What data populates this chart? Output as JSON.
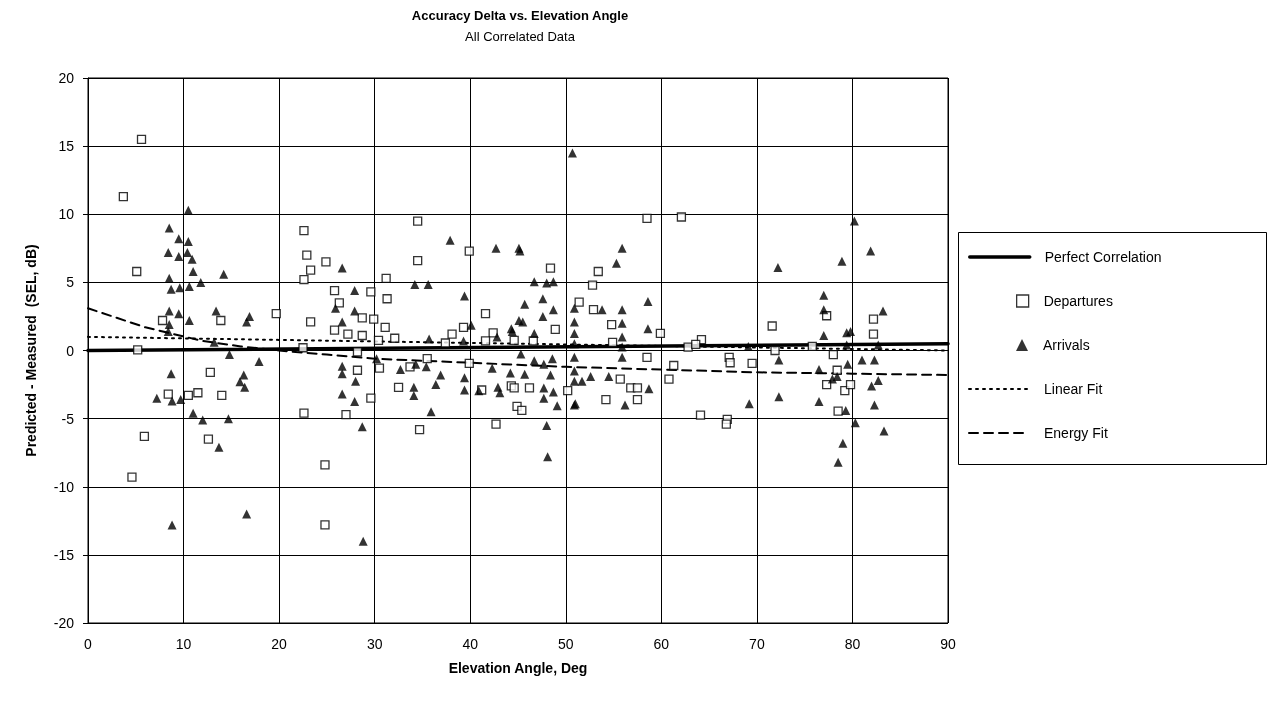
{
  "chart_data": {
    "type": "scatter",
    "title": "Accuracy Delta vs. Elevation Angle",
    "subtitle": "All Correlated Data",
    "xlabel": "Elevation Angle, Deg",
    "ylabel": "Predicted - Measured  (SEL, dB)",
    "xlim": [
      0,
      90
    ],
    "xticks": [
      0,
      10,
      20,
      30,
      40,
      50,
      60,
      70,
      80,
      90
    ],
    "ylim": [
      -20,
      20
    ],
    "yticks": [
      -20,
      -15,
      -10,
      -5,
      0,
      5,
      10,
      15,
      20
    ],
    "grid": true,
    "legend": "right",
    "series": [
      {
        "name": "Perfect Correlation",
        "type": "line",
        "color": "#000000",
        "line_style": "solid",
        "marker": "none",
        "x": [
          0,
          90
        ],
        "values": [
          0,
          0.5
        ]
      },
      {
        "name": "Departures",
        "color": "#000000",
        "marker": "square",
        "x": [
          5.6,
          3.7,
          5.1,
          7.8,
          13.9,
          19.7,
          5.2,
          12.8,
          8.4,
          10.5,
          11.5,
          14.0,
          5.9,
          12.6,
          4.6,
          34.5,
          39.9,
          34.5,
          22.6,
          22.9,
          24.9,
          23.3,
          22.6,
          31.2,
          25.8,
          29.6,
          31.3,
          26.3,
          23.3,
          28.7,
          29.9,
          31.1,
          41.6,
          25.8,
          27.2,
          28.7,
          30.4,
          32.1,
          38.1,
          39.3,
          37.4,
          42.4,
          41.6,
          44.6,
          22.5,
          28.2,
          28.2,
          30.5,
          35.5,
          33.7,
          39.9,
          32.5,
          41.2,
          44.3,
          29.6,
          44.9,
          22.6,
          27.0,
          34.7,
          42.7,
          24.8,
          24.8,
          58.5,
          62.1,
          48.4,
          53.4,
          52.8,
          51.4,
          52.9,
          48.9,
          54.8,
          54.9,
          59.9,
          46.6,
          64.2,
          62.8,
          63.6,
          67.1,
          61.3,
          60.8,
          55.7,
          56.8,
          57.5,
          54.2,
          57.5,
          44.6,
          46.2,
          50.2,
          45.4,
          64.1,
          66.9,
          58.5,
          71.6,
          82.2,
          82.2,
          71.9,
          75.8,
          78.0,
          67.2,
          69.5,
          77.3,
          77.3,
          78.4,
          79.2,
          79.8,
          78.5,
          66.8
        ],
        "values": [
          15.5,
          11.3,
          5.8,
          2.2,
          2.2,
          2.7,
          0.05,
          -1.6,
          -3.2,
          -3.3,
          -3.1,
          -3.3,
          -6.3,
          -6.5,
          -9.3,
          9.5,
          7.3,
          6.6,
          8.8,
          7.0,
          6.5,
          5.9,
          5.2,
          5.3,
          4.4,
          4.3,
          3.8,
          3.5,
          2.1,
          2.4,
          2.3,
          1.7,
          2.7,
          1.5,
          1.2,
          1.1,
          0.75,
          0.9,
          1.2,
          1.7,
          0.55,
          1.3,
          0.7,
          0.75,
          0.2,
          -0.1,
          -1.45,
          -1.3,
          -0.6,
          -1.2,
          -0.95,
          -2.7,
          -2.9,
          -2.6,
          -3.5,
          -4.1,
          -4.6,
          -4.7,
          -5.8,
          -5.4,
          -8.4,
          -12.8,
          9.7,
          9.8,
          6.05,
          5.8,
          4.8,
          3.55,
          3.0,
          1.55,
          1.9,
          0.6,
          1.25,
          0.7,
          0.8,
          0.25,
          0.45,
          -0.5,
          -1.1,
          -2.1,
          -2.1,
          -2.75,
          -2.75,
          -3.6,
          -3.6,
          -2.75,
          -2.75,
          -2.95,
          -4.4,
          -4.75,
          -5.05,
          -0.5,
          1.8,
          2.3,
          1.2,
          0.0,
          0.3,
          -0.3,
          -0.9,
          -0.95,
          2.55,
          -2.5,
          -1.45,
          -2.95,
          -2.5,
          -4.45,
          -5.4
        ]
      },
      {
        "name": "Arrivals",
        "color": "#000000",
        "marker": "triangle",
        "x": [
          10.5,
          8.5,
          9.5,
          10.5,
          8.4,
          9.5,
          10.4,
          10.9,
          11.0,
          11.8,
          14.2,
          8.5,
          8.7,
          9.6,
          10.6,
          8.5,
          9.5,
          10.6,
          13.4,
          16.9,
          16.6,
          8.5,
          8.4,
          13.2,
          14.8,
          17.9,
          8.7,
          16.3,
          15.9,
          16.4,
          7.2,
          8.8,
          9.7,
          11.0,
          12.0,
          14.7,
          13.7,
          16.6,
          8.8,
          37.9,
          42.7,
          45.1,
          26.6,
          34.2,
          35.6,
          27.9,
          39.4,
          25.9,
          27.9,
          26.6,
          45.1,
          40.1,
          44.3,
          35.7,
          39.3,
          42.8,
          26.6,
          26.6,
          28.0,
          30.2,
          32.7,
          34.3,
          35.4,
          36.9,
          36.4,
          34.1,
          34.1,
          39.4,
          39.4,
          40.9,
          42.9,
          43.1,
          42.3,
          44.2,
          26.6,
          27.9,
          35.9,
          28.7,
          28.8,
          50.7,
          45.2,
          55.9,
          55.3,
          46.7,
          48.0,
          48.7,
          58.6,
          45.7,
          47.6,
          48.7,
          47.6,
          45.5,
          50.9,
          50.9,
          50.9,
          50.9,
          50.9,
          50.9,
          50.9,
          50.9,
          53.8,
          55.9,
          55.9,
          55.9,
          55.9,
          55.9,
          58.6,
          46.7,
          44.4,
          45.3,
          46.7,
          47.7,
          48.6,
          45.7,
          48.4,
          51.7,
          52.6,
          54.5,
          58.7,
          47.7,
          48.7,
          47.7,
          49.1,
          51.0,
          56.2,
          48.0,
          48.1,
          80.2,
          81.9,
          72.2,
          78.9,
          77.0,
          77.0,
          83.2,
          77.0,
          79.4,
          79.8,
          79.4,
          69.1,
          82.7,
          72.3,
          81.0,
          82.3,
          79.5,
          76.5,
          77.9,
          78.4,
          82.0,
          82.7,
          72.3,
          76.5,
          69.2,
          82.3,
          79.3,
          80.3,
          83.3,
          79.0,
          78.5
        ],
        "values": [
          10.3,
          9.0,
          8.2,
          8.0,
          7.2,
          6.9,
          7.2,
          6.7,
          5.8,
          5.0,
          5.6,
          5.3,
          4.5,
          4.6,
          4.7,
          2.9,
          2.7,
          2.2,
          2.9,
          2.5,
          2.1,
          1.9,
          1.4,
          0.6,
          -0.3,
          -0.8,
          -1.7,
          -1.8,
          -2.3,
          -2.7,
          -3.5,
          -3.7,
          -3.6,
          -4.6,
          -5.1,
          -5.0,
          -7.1,
          -12.0,
          -12.8,
          8.1,
          7.5,
          7.5,
          6.05,
          4.85,
          4.85,
          4.4,
          4.0,
          3.1,
          2.9,
          2.1,
          2.2,
          1.85,
          1.6,
          0.85,
          0.7,
          1.0,
          -1.15,
          -1.7,
          -2.25,
          -0.6,
          -1.4,
          -1.0,
          -1.2,
          -1.8,
          -2.5,
          -2.7,
          -3.3,
          -2.0,
          -2.9,
          -2.95,
          -2.7,
          -3.1,
          -1.3,
          -1.65,
          -3.2,
          -3.75,
          -4.5,
          -5.6,
          -14.0,
          14.5,
          7.3,
          7.5,
          6.4,
          5.05,
          4.95,
          5.05,
          3.6,
          3.4,
          3.8,
          3.0,
          2.5,
          2.1,
          3.1,
          2.1,
          1.25,
          0.5,
          -0.5,
          -1.5,
          -2.25,
          -4.0,
          3.0,
          3.0,
          2.0,
          1.0,
          0.25,
          -0.5,
          1.6,
          1.25,
          1.4,
          -0.25,
          -0.75,
          -1.0,
          -0.6,
          -1.75,
          -1.8,
          -2.25,
          -1.9,
          -1.9,
          -2.8,
          -2.75,
          -3.05,
          -3.5,
          -4.05,
          -3.9,
          -4.0,
          -5.5,
          -7.8,
          9.5,
          7.3,
          6.1,
          6.55,
          4.05,
          3.0,
          2.9,
          1.1,
          1.3,
          1.4,
          0.4,
          0.3,
          0.4,
          -0.7,
          -0.7,
          -0.7,
          -1.0,
          -1.4,
          -2.1,
          -1.9,
          -2.6,
          -2.2,
          -3.4,
          -3.75,
          -3.9,
          -4.0,
          -4.4,
          -5.3,
          -5.9,
          -6.8,
          -8.2
        ]
      },
      {
        "name": "Linear Fit",
        "type": "line",
        "color": "#000000",
        "line_style": "dotted",
        "marker": "none",
        "x": [
          0,
          90
        ],
        "values": [
          1.0,
          0.0
        ]
      },
      {
        "name": "Energy Fit",
        "type": "line",
        "color": "#000000",
        "line_style": "dashed",
        "marker": "none",
        "x": [
          0,
          3,
          6,
          9,
          12,
          16,
          20,
          25,
          30,
          40,
          50,
          60,
          70,
          80,
          90
        ],
        "values": [
          3.1,
          2.4,
          1.7,
          1.2,
          0.7,
          0.3,
          0.0,
          -0.3,
          -0.6,
          -0.9,
          -1.2,
          -1.4,
          -1.6,
          -1.7,
          -1.8
        ]
      }
    ]
  }
}
